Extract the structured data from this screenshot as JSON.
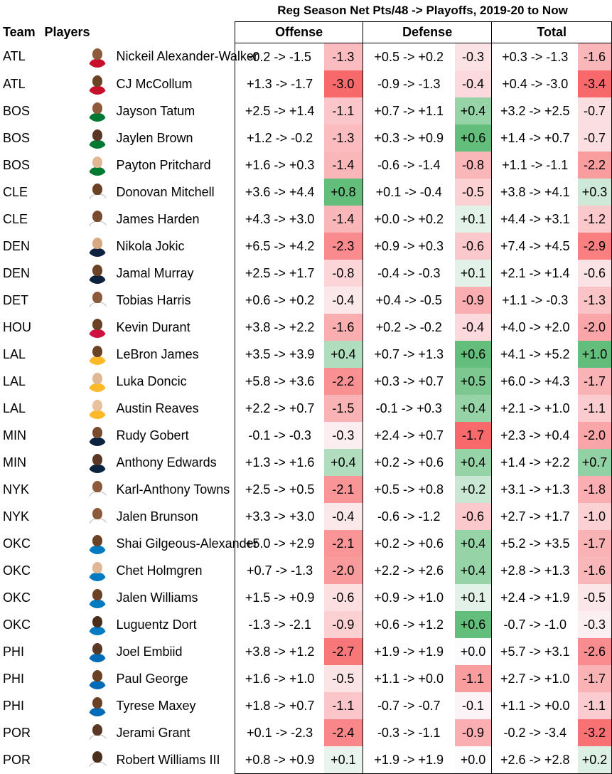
{
  "chart_data": {
    "type": "table",
    "title": "Reg Season Net Pts/48 -> Playoffs, 2019-20 to Now",
    "columns": {
      "team": "Team",
      "players": "Players",
      "offense": "Offense",
      "defense": "Defense",
      "total": "Total"
    },
    "rows": [
      {
        "team": "ATL",
        "player": "Nickeil Alexander-Walker",
        "off": "-0.2 -> -1.5",
        "off_d": -1.3,
        "def": "+0.5 -> +0.2",
        "def_d": -0.3,
        "tot": "+0.3 -> -1.3",
        "tot_d": -1.6,
        "jersey": "#c8102e",
        "skin": "#8d5a3b"
      },
      {
        "team": "ATL",
        "player": "CJ McCollum",
        "off": "+1.3 -> -1.7",
        "off_d": -3.0,
        "def": "-0.9 -> -1.3",
        "def_d": -0.4,
        "tot": "+0.4 -> -3.0",
        "tot_d": -3.4,
        "jersey": "#c8102e",
        "skin": "#6b4226"
      },
      {
        "team": "BOS",
        "player": "Jayson Tatum",
        "off": "+2.5 -> +1.4",
        "off_d": -1.1,
        "def": "+0.7 -> +1.1",
        "def_d": 0.4,
        "tot": "+3.2 -> +2.5",
        "tot_d": -0.7,
        "jersey": "#007a33",
        "skin": "#8d5a3b"
      },
      {
        "team": "BOS",
        "player": "Jaylen Brown",
        "off": "+1.2 -> -0.2",
        "off_d": -1.3,
        "def": "+0.3 -> +0.9",
        "def_d": 0.6,
        "tot": "+1.4 -> +0.7",
        "tot_d": -0.7,
        "jersey": "#007a33",
        "skin": "#5a3825"
      },
      {
        "team": "BOS",
        "player": "Payton Pritchard",
        "off": "+1.6 -> +0.3",
        "off_d": -1.4,
        "def": "-0.6 -> -1.4",
        "def_d": -0.8,
        "tot": "+1.1 -> -1.1",
        "tot_d": -2.2,
        "jersey": "#007a33",
        "skin": "#e2b894"
      },
      {
        "team": "CLE",
        "player": "Donovan Mitchell",
        "off": "+3.6 -> +4.4",
        "off_d": 0.8,
        "def": "+0.1 -> -0.4",
        "def_d": -0.5,
        "tot": "+3.8 -> +4.1",
        "tot_d": 0.3,
        "jersey": "#ffffff",
        "skin": "#6b4226"
      },
      {
        "team": "CLE",
        "player": "James Harden",
        "off": "+4.3 -> +3.0",
        "off_d": -1.4,
        "def": "+0.0 -> +0.2",
        "def_d": 0.1,
        "tot": "+4.4 -> +3.1",
        "tot_d": -1.2,
        "jersey": "#ffffff",
        "skin": "#7a4b2e"
      },
      {
        "team": "DEN",
        "player": "Nikola Jokic",
        "off": "+6.5 -> +4.2",
        "off_d": -2.3,
        "def": "+0.9 -> +0.3",
        "def_d": -0.6,
        "tot": "+7.4 -> +4.5",
        "tot_d": -2.9,
        "jersey": "#0e2240",
        "skin": "#d9a982"
      },
      {
        "team": "DEN",
        "player": "Jamal Murray",
        "off": "+2.5 -> +1.7",
        "off_d": -0.8,
        "def": "-0.4 -> -0.3",
        "def_d": 0.1,
        "tot": "+2.1 -> +1.4",
        "tot_d": -0.6,
        "jersey": "#0e2240",
        "skin": "#6b4226"
      },
      {
        "team": "DET",
        "player": "Tobias Harris",
        "off": "+0.6 -> +0.2",
        "off_d": -0.4,
        "def": "+0.4 -> -0.5",
        "def_d": -0.9,
        "tot": "+1.1 -> -0.3",
        "tot_d": -1.3,
        "jersey": "#ffffff",
        "skin": "#8d5a3b"
      },
      {
        "team": "HOU",
        "player": "Kevin Durant",
        "off": "+3.8 -> +2.2",
        "off_d": -1.6,
        "def": "+0.2 -> -0.2",
        "def_d": -0.4,
        "tot": "+4.0 -> +2.0",
        "tot_d": -2.0,
        "jersey": "#ce1141",
        "skin": "#6b4226"
      },
      {
        "team": "LAL",
        "player": "LeBron James",
        "off": "+3.5 -> +3.9",
        "off_d": 0.4,
        "def": "+0.7 -> +1.3",
        "def_d": 0.6,
        "tot": "+4.1 -> +5.2",
        "tot_d": 1.0,
        "jersey": "#fdb927",
        "skin": "#6b4226"
      },
      {
        "team": "LAL",
        "player": "Luka Doncic",
        "off": "+5.8 -> +3.6",
        "off_d": -2.2,
        "def": "+0.3 -> +0.7",
        "def_d": 0.5,
        "tot": "+6.0 -> +4.3",
        "tot_d": -1.7,
        "jersey": "#fdb927",
        "skin": "#e2b894"
      },
      {
        "team": "LAL",
        "player": "Austin Reaves",
        "off": "+2.2 -> +0.7",
        "off_d": -1.5,
        "def": "-0.1 -> +0.3",
        "def_d": 0.4,
        "tot": "+2.1 -> +1.0",
        "tot_d": -1.1,
        "jersey": "#fdb927",
        "skin": "#e8c09c"
      },
      {
        "team": "MIN",
        "player": "Rudy Gobert",
        "off": "-0.1 -> -0.3",
        "off_d": -0.3,
        "def": "+2.4 -> +0.7",
        "def_d": -1.7,
        "tot": "+2.3 -> +0.4",
        "tot_d": -2.0,
        "jersey": "#0c2340",
        "skin": "#7a4b2e"
      },
      {
        "team": "MIN",
        "player": "Anthony Edwards",
        "off": "+1.3 -> +1.6",
        "off_d": 0.4,
        "def": "+0.2 -> +0.6",
        "def_d": 0.4,
        "tot": "+1.4 -> +2.2",
        "tot_d": 0.7,
        "jersey": "#0c2340",
        "skin": "#5a3825"
      },
      {
        "team": "NYK",
        "player": "Karl-Anthony Towns",
        "off": "+2.5 -> +0.5",
        "off_d": -2.1,
        "def": "+0.5 -> +0.8",
        "def_d": 0.2,
        "tot": "+3.1 -> +1.3",
        "tot_d": -1.8,
        "jersey": "#ffffff",
        "skin": "#8d5a3b"
      },
      {
        "team": "NYK",
        "player": "Jalen Brunson",
        "off": "+3.3 -> +3.0",
        "off_d": -0.4,
        "def": "-0.6 -> -1.2",
        "def_d": -0.6,
        "tot": "+2.7 -> +1.7",
        "tot_d": -1.0,
        "jersey": "#ffffff",
        "skin": "#8d5a3b"
      },
      {
        "team": "OKC",
        "player": "Shai Gilgeous-Alexander",
        "off": "+5.0 -> +2.9",
        "off_d": -2.1,
        "def": "+0.2 -> +0.6",
        "def_d": 0.4,
        "tot": "+5.2 -> +3.5",
        "tot_d": -1.7,
        "jersey": "#007ac1",
        "skin": "#6b4226"
      },
      {
        "team": "OKC",
        "player": "Chet Holmgren",
        "off": "+0.7 -> -1.3",
        "off_d": -2.0,
        "def": "+2.2 -> +2.6",
        "def_d": 0.4,
        "tot": "+2.8 -> +1.3",
        "tot_d": -1.6,
        "jersey": "#007ac1",
        "skin": "#e2b894"
      },
      {
        "team": "OKC",
        "player": "Jalen Williams",
        "off": "+1.5 -> +0.9",
        "off_d": -0.6,
        "def": "+0.9 -> +1.0",
        "def_d": 0.1,
        "tot": "+2.4 -> +1.9",
        "tot_d": -0.5,
        "jersey": "#007ac1",
        "skin": "#6b4226"
      },
      {
        "team": "OKC",
        "player": "Luguentz Dort",
        "off": "-1.3 -> -2.1",
        "off_d": -0.9,
        "def": "+0.6 -> +1.2",
        "def_d": 0.6,
        "tot": "-0.7 -> -1.0",
        "tot_d": -0.3,
        "jersey": "#007ac1",
        "skin": "#4a2e1c"
      },
      {
        "team": "PHI",
        "player": "Joel Embiid",
        "off": "+3.8 -> +1.2",
        "off_d": -2.7,
        "def": "+1.9 -> +1.9",
        "def_d": 0.0,
        "tot": "+5.7 -> +3.1",
        "tot_d": -2.6,
        "jersey": "#006bb6",
        "skin": "#5a3825"
      },
      {
        "team": "PHI",
        "player": "Paul George",
        "off": "+1.6 -> +1.0",
        "off_d": -0.5,
        "def": "+1.1 -> +0.0",
        "def_d": -1.1,
        "tot": "+2.7 -> +1.0",
        "tot_d": -1.7,
        "jersey": "#006bb6",
        "skin": "#6b4226"
      },
      {
        "team": "PHI",
        "player": "Tyrese Maxey",
        "off": "+1.8 -> +0.7",
        "off_d": -1.1,
        "def": "-0.7 -> -0.7",
        "def_d": -0.1,
        "tot": "+1.1 -> +0.0",
        "tot_d": -1.1,
        "jersey": "#006bb6",
        "skin": "#6b4226"
      },
      {
        "team": "POR",
        "player": "Jerami Grant",
        "off": "+0.1 -> -2.3",
        "off_d": -2.4,
        "def": "-0.3 -> -1.1",
        "def_d": -0.9,
        "tot": "-0.2 -> -3.4",
        "tot_d": -3.2,
        "jersey": "#ffffff",
        "skin": "#5a3825"
      },
      {
        "team": "POR",
        "player": "Robert Williams III",
        "off": "+0.8 -> +0.9",
        "off_d": 0.1,
        "def": "+1.9 -> +1.9",
        "def_d": 0.0,
        "tot": "+2.6 -> +2.8",
        "tot_d": 0.2,
        "jersey": "#ffffff",
        "skin": "#4a2e1c"
      }
    ],
    "colors": {
      "negative": "#f8696b",
      "neutral": "#fcfcff",
      "positive": "#63be7b"
    }
  }
}
